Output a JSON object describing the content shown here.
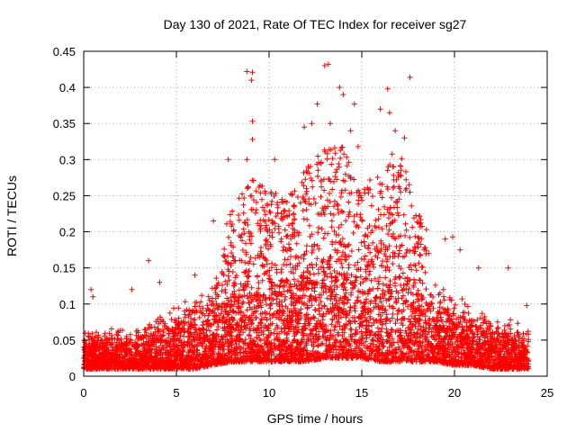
{
  "chart_data": {
    "type": "scatter",
    "title": "Day 130 of 2021, Rate Of TEC Index for receiver sg27",
    "xlabel": "GPS time / hours",
    "ylabel": "ROTI / TECUs",
    "xlim": [
      0,
      25
    ],
    "ylim": [
      0,
      0.45
    ],
    "x_ticks": [
      0,
      5,
      10,
      15,
      20,
      25
    ],
    "x_tick_labels": [
      "0",
      "5",
      "10",
      "15",
      "20",
      "25"
    ],
    "y_ticks": [
      0,
      0.05,
      0.1,
      0.15,
      0.2,
      0.25,
      0.3,
      0.35,
      0.4,
      0.45
    ],
    "y_tick_labels": [
      "0",
      "0.05",
      "0.1",
      "0.15",
      "0.2",
      "0.25",
      "0.3",
      "0.35",
      "0.4",
      "0.45"
    ],
    "grid": true,
    "marker": "+",
    "color": "#ff0000",
    "series": [
      {
        "name": "ROTI",
        "notable_points": [
          {
            "x": 8.8,
            "y": 0.422
          },
          {
            "x": 9.1,
            "y": 0.421
          },
          {
            "x": 9.05,
            "y": 0.41
          },
          {
            "x": 13.0,
            "y": 0.43
          },
          {
            "x": 13.2,
            "y": 0.432
          },
          {
            "x": 17.6,
            "y": 0.414
          },
          {
            "x": 16.4,
            "y": 0.398
          },
          {
            "x": 13.8,
            "y": 0.4
          },
          {
            "x": 14.0,
            "y": 0.39
          },
          {
            "x": 14.6,
            "y": 0.377
          },
          {
            "x": 12.6,
            "y": 0.377
          },
          {
            "x": 16.0,
            "y": 0.37
          },
          {
            "x": 16.5,
            "y": 0.365
          },
          {
            "x": 9.1,
            "y": 0.353
          },
          {
            "x": 11.9,
            "y": 0.345
          },
          {
            "x": 12.3,
            "y": 0.35
          },
          {
            "x": 13.3,
            "y": 0.35
          },
          {
            "x": 14.4,
            "y": 0.34
          },
          {
            "x": 16.8,
            "y": 0.34
          },
          {
            "x": 17.3,
            "y": 0.33
          },
          {
            "x": 9.1,
            "y": 0.328
          },
          {
            "x": 14.8,
            "y": 0.318
          },
          {
            "x": 7.8,
            "y": 0.3
          },
          {
            "x": 8.8,
            "y": 0.3
          },
          {
            "x": 10.3,
            "y": 0.3
          },
          {
            "x": 3.5,
            "y": 0.16
          },
          {
            "x": 7.0,
            "y": 0.215
          },
          {
            "x": 19.9,
            "y": 0.193
          },
          {
            "x": 19.5,
            "y": 0.19
          },
          {
            "x": 0.4,
            "y": 0.12
          },
          {
            "x": 0.5,
            "y": 0.11
          },
          {
            "x": 2.6,
            "y": 0.12
          },
          {
            "x": 4.1,
            "y": 0.13
          },
          {
            "x": 6.0,
            "y": 0.14
          },
          {
            "x": 22.9,
            "y": 0.15
          },
          {
            "x": 23.9,
            "y": 0.098
          },
          {
            "x": 21.3,
            "y": 0.15
          },
          {
            "x": 18.6,
            "y": 0.17
          },
          {
            "x": 20.3,
            "y": 0.175
          }
        ],
        "envelope_hours": [
          0,
          1,
          2,
          3,
          4,
          5,
          6,
          7,
          8,
          9,
          10,
          11,
          12,
          13,
          14,
          15,
          16,
          17,
          18,
          19,
          20,
          21,
          22,
          23,
          24
        ],
        "envelope_typical_upper": [
          0.06,
          0.06,
          0.06,
          0.06,
          0.08,
          0.09,
          0.1,
          0.12,
          0.16,
          0.19,
          0.18,
          0.17,
          0.2,
          0.22,
          0.22,
          0.18,
          0.2,
          0.22,
          0.16,
          0.12,
          0.1,
          0.09,
          0.08,
          0.07,
          0.06
        ],
        "envelope_baseline": [
          0.01,
          0.01,
          0.01,
          0.01,
          0.01,
          0.01,
          0.01,
          0.015,
          0.02,
          0.02,
          0.02,
          0.02,
          0.02,
          0.025,
          0.025,
          0.025,
          0.02,
          0.02,
          0.02,
          0.02,
          0.015,
          0.015,
          0.01,
          0.01,
          0.01
        ]
      }
    ]
  }
}
